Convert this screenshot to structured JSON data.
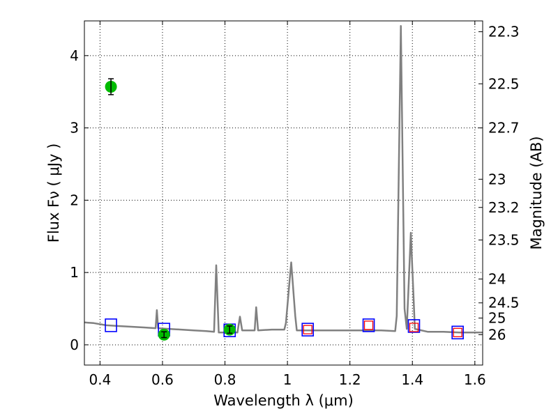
{
  "chart_data": {
    "type": "line",
    "xlabel": "Wavelength  λ (μm)",
    "ylabel": "Flux  Fν  ( μJy )",
    "y2label": "Magnitude (AB)",
    "xlim": [
      0.35,
      1.625
    ],
    "ylim": [
      -0.28,
      4.48
    ],
    "grid": true,
    "x_ticks": [
      0.4,
      0.6,
      0.8,
      1.0,
      1.2,
      1.4,
      1.6
    ],
    "x_tick_labels": [
      "0.4",
      "0.6",
      "0.8",
      "1",
      "1.2",
      "1.4",
      "1.6"
    ],
    "y_ticks": [
      0,
      1,
      2,
      3,
      4
    ],
    "y_tick_labels": [
      "0",
      "1",
      "2",
      "3",
      "4"
    ],
    "mag_ticks": [
      {
        "label": "22.3",
        "flux": 4.33
      },
      {
        "label": "22.5",
        "flux": 3.61
      },
      {
        "label": "22.7",
        "flux": 3.0
      },
      {
        "label": "23",
        "flux": 2.29
      },
      {
        "label": "23.2",
        "flux": 1.9
      },
      {
        "label": "23.5",
        "flux": 1.45
      },
      {
        "label": "24",
        "flux": 0.91
      },
      {
        "label": "24.5",
        "flux": 0.58
      },
      {
        "label": "25",
        "flux": 0.37
      },
      {
        "label": "26",
        "flux": 0.14
      }
    ],
    "series": [
      {
        "kind": "model",
        "color": "#808080",
        "points": [
          [
            0.35,
            0.31
          ],
          [
            0.38,
            0.3
          ],
          [
            0.42,
            0.27
          ],
          [
            0.46,
            0.26
          ],
          [
            0.5,
            0.25
          ],
          [
            0.54,
            0.24
          ],
          [
            0.578,
            0.23
          ],
          [
            0.582,
            0.48
          ],
          [
            0.586,
            0.23
          ],
          [
            0.62,
            0.22
          ],
          [
            0.66,
            0.21
          ],
          [
            0.7,
            0.2
          ],
          [
            0.74,
            0.19
          ],
          [
            0.765,
            0.18
          ],
          [
            0.772,
            1.1
          ],
          [
            0.78,
            0.17
          ],
          [
            0.8,
            0.17
          ],
          [
            0.84,
            0.17
          ],
          [
            0.848,
            0.39
          ],
          [
            0.855,
            0.2
          ],
          [
            0.88,
            0.2
          ],
          [
            0.895,
            0.2
          ],
          [
            0.9,
            0.52
          ],
          [
            0.906,
            0.2
          ],
          [
            0.95,
            0.21
          ],
          [
            0.99,
            0.21
          ],
          [
            0.995,
            0.3
          ],
          [
            1.012,
            1.14
          ],
          [
            1.025,
            0.4
          ],
          [
            1.03,
            0.2
          ],
          [
            1.06,
            0.2
          ],
          [
            1.1,
            0.2
          ],
          [
            1.15,
            0.2
          ],
          [
            1.2,
            0.2
          ],
          [
            1.25,
            0.2
          ],
          [
            1.3,
            0.2
          ],
          [
            1.345,
            0.19
          ],
          [
            1.35,
            0.4
          ],
          [
            1.363,
            4.41
          ],
          [
            1.375,
            0.5
          ],
          [
            1.382,
            0.22
          ],
          [
            1.395,
            1.55
          ],
          [
            1.408,
            0.22
          ],
          [
            1.45,
            0.18
          ],
          [
            1.5,
            0.18
          ],
          [
            1.55,
            0.17
          ],
          [
            1.6,
            0.17
          ],
          [
            1.625,
            0.17
          ]
        ]
      },
      {
        "kind": "model_photometry",
        "marker": "square",
        "color": "#0000ff",
        "points": [
          [
            0.435,
            0.27
          ],
          [
            0.605,
            0.21
          ],
          [
            0.815,
            0.2
          ],
          [
            1.065,
            0.21
          ],
          [
            1.26,
            0.27
          ],
          [
            1.405,
            0.26
          ],
          [
            1.545,
            0.17
          ]
        ]
      },
      {
        "kind": "observed_upper",
        "marker": "square",
        "color": "#ff0000",
        "points": [
          [
            1.065,
            0.21
          ],
          [
            1.26,
            0.27
          ],
          [
            1.405,
            0.24
          ],
          [
            1.545,
            0.17
          ]
        ]
      },
      {
        "kind": "observed",
        "marker": "circle",
        "color": "#00bb00",
        "points": [
          {
            "x": 0.435,
            "y": 3.57,
            "err": 0.11
          },
          {
            "x": 0.605,
            "y": 0.14,
            "err": 0.04
          },
          {
            "x": 0.815,
            "y": 0.21,
            "err": 0.05
          }
        ]
      }
    ]
  }
}
